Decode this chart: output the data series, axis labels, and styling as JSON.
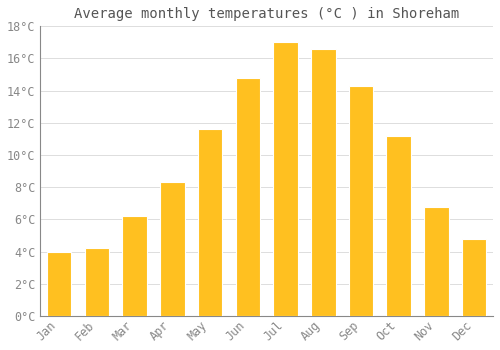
{
  "title": "Average monthly temperatures (°C ) in Shoreham",
  "months": [
    "Jan",
    "Feb",
    "Mar",
    "Apr",
    "May",
    "Jun",
    "Jul",
    "Aug",
    "Sep",
    "Oct",
    "Nov",
    "Dec"
  ],
  "values": [
    4.0,
    4.2,
    6.2,
    8.3,
    11.6,
    14.8,
    17.0,
    16.6,
    14.3,
    11.2,
    6.8,
    4.8
  ],
  "bar_color": "#FFC020",
  "bar_color_dark": "#F0A800",
  "background_color": "#FFFFFF",
  "grid_color": "#DDDDDD",
  "text_color": "#888888",
  "spine_color": "#888888",
  "ylim": [
    0,
    18
  ],
  "yticks": [
    0,
    2,
    4,
    6,
    8,
    10,
    12,
    14,
    16,
    18
  ],
  "title_fontsize": 10,
  "tick_fontsize": 8.5,
  "bar_width": 0.65
}
